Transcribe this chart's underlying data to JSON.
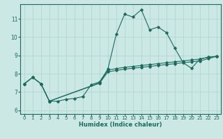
{
  "xlabel": "Humidex (Indice chaleur)",
  "bg_color": "#cce8e4",
  "line_color": "#1a6b5e",
  "grid_color": "#aad4cc",
  "xlim": [
    -0.5,
    23.5
  ],
  "ylim": [
    5.8,
    11.8
  ],
  "yticks": [
    6,
    7,
    8,
    9,
    10,
    11
  ],
  "xticks": [
    0,
    1,
    2,
    3,
    4,
    5,
    6,
    7,
    8,
    9,
    10,
    11,
    12,
    13,
    14,
    15,
    16,
    17,
    18,
    19,
    20,
    21,
    22,
    23
  ],
  "series1_x": [
    0,
    1,
    2,
    3,
    4,
    5,
    6,
    7,
    8,
    9,
    10,
    11,
    12,
    13,
    14,
    15,
    16,
    17,
    18,
    19,
    20,
    21,
    22,
    23
  ],
  "series1_y": [
    7.45,
    7.8,
    7.45,
    6.5,
    6.5,
    6.6,
    6.65,
    6.75,
    7.4,
    7.55,
    8.25,
    10.15,
    11.25,
    11.1,
    11.5,
    10.4,
    10.55,
    10.25,
    9.4,
    8.6,
    8.3,
    8.8,
    8.9,
    8.95
  ],
  "series2_x": [
    0,
    1,
    2,
    3,
    9,
    10,
    11,
    12,
    13,
    14,
    15,
    16,
    17,
    18,
    19,
    20,
    21,
    22,
    23
  ],
  "series2_y": [
    7.45,
    7.8,
    7.45,
    6.5,
    7.5,
    8.2,
    8.28,
    8.35,
    8.4,
    8.45,
    8.5,
    8.55,
    8.6,
    8.65,
    8.7,
    8.75,
    8.8,
    8.9,
    8.95
  ],
  "series3_x": [
    0,
    1,
    2,
    3,
    9,
    10,
    11,
    12,
    13,
    14,
    15,
    16,
    17,
    18,
    19,
    20,
    21,
    22,
    23
  ],
  "series3_y": [
    7.45,
    7.8,
    7.45,
    6.5,
    7.48,
    8.1,
    8.18,
    8.25,
    8.3,
    8.35,
    8.4,
    8.45,
    8.5,
    8.55,
    8.6,
    8.65,
    8.7,
    8.82,
    8.95
  ]
}
